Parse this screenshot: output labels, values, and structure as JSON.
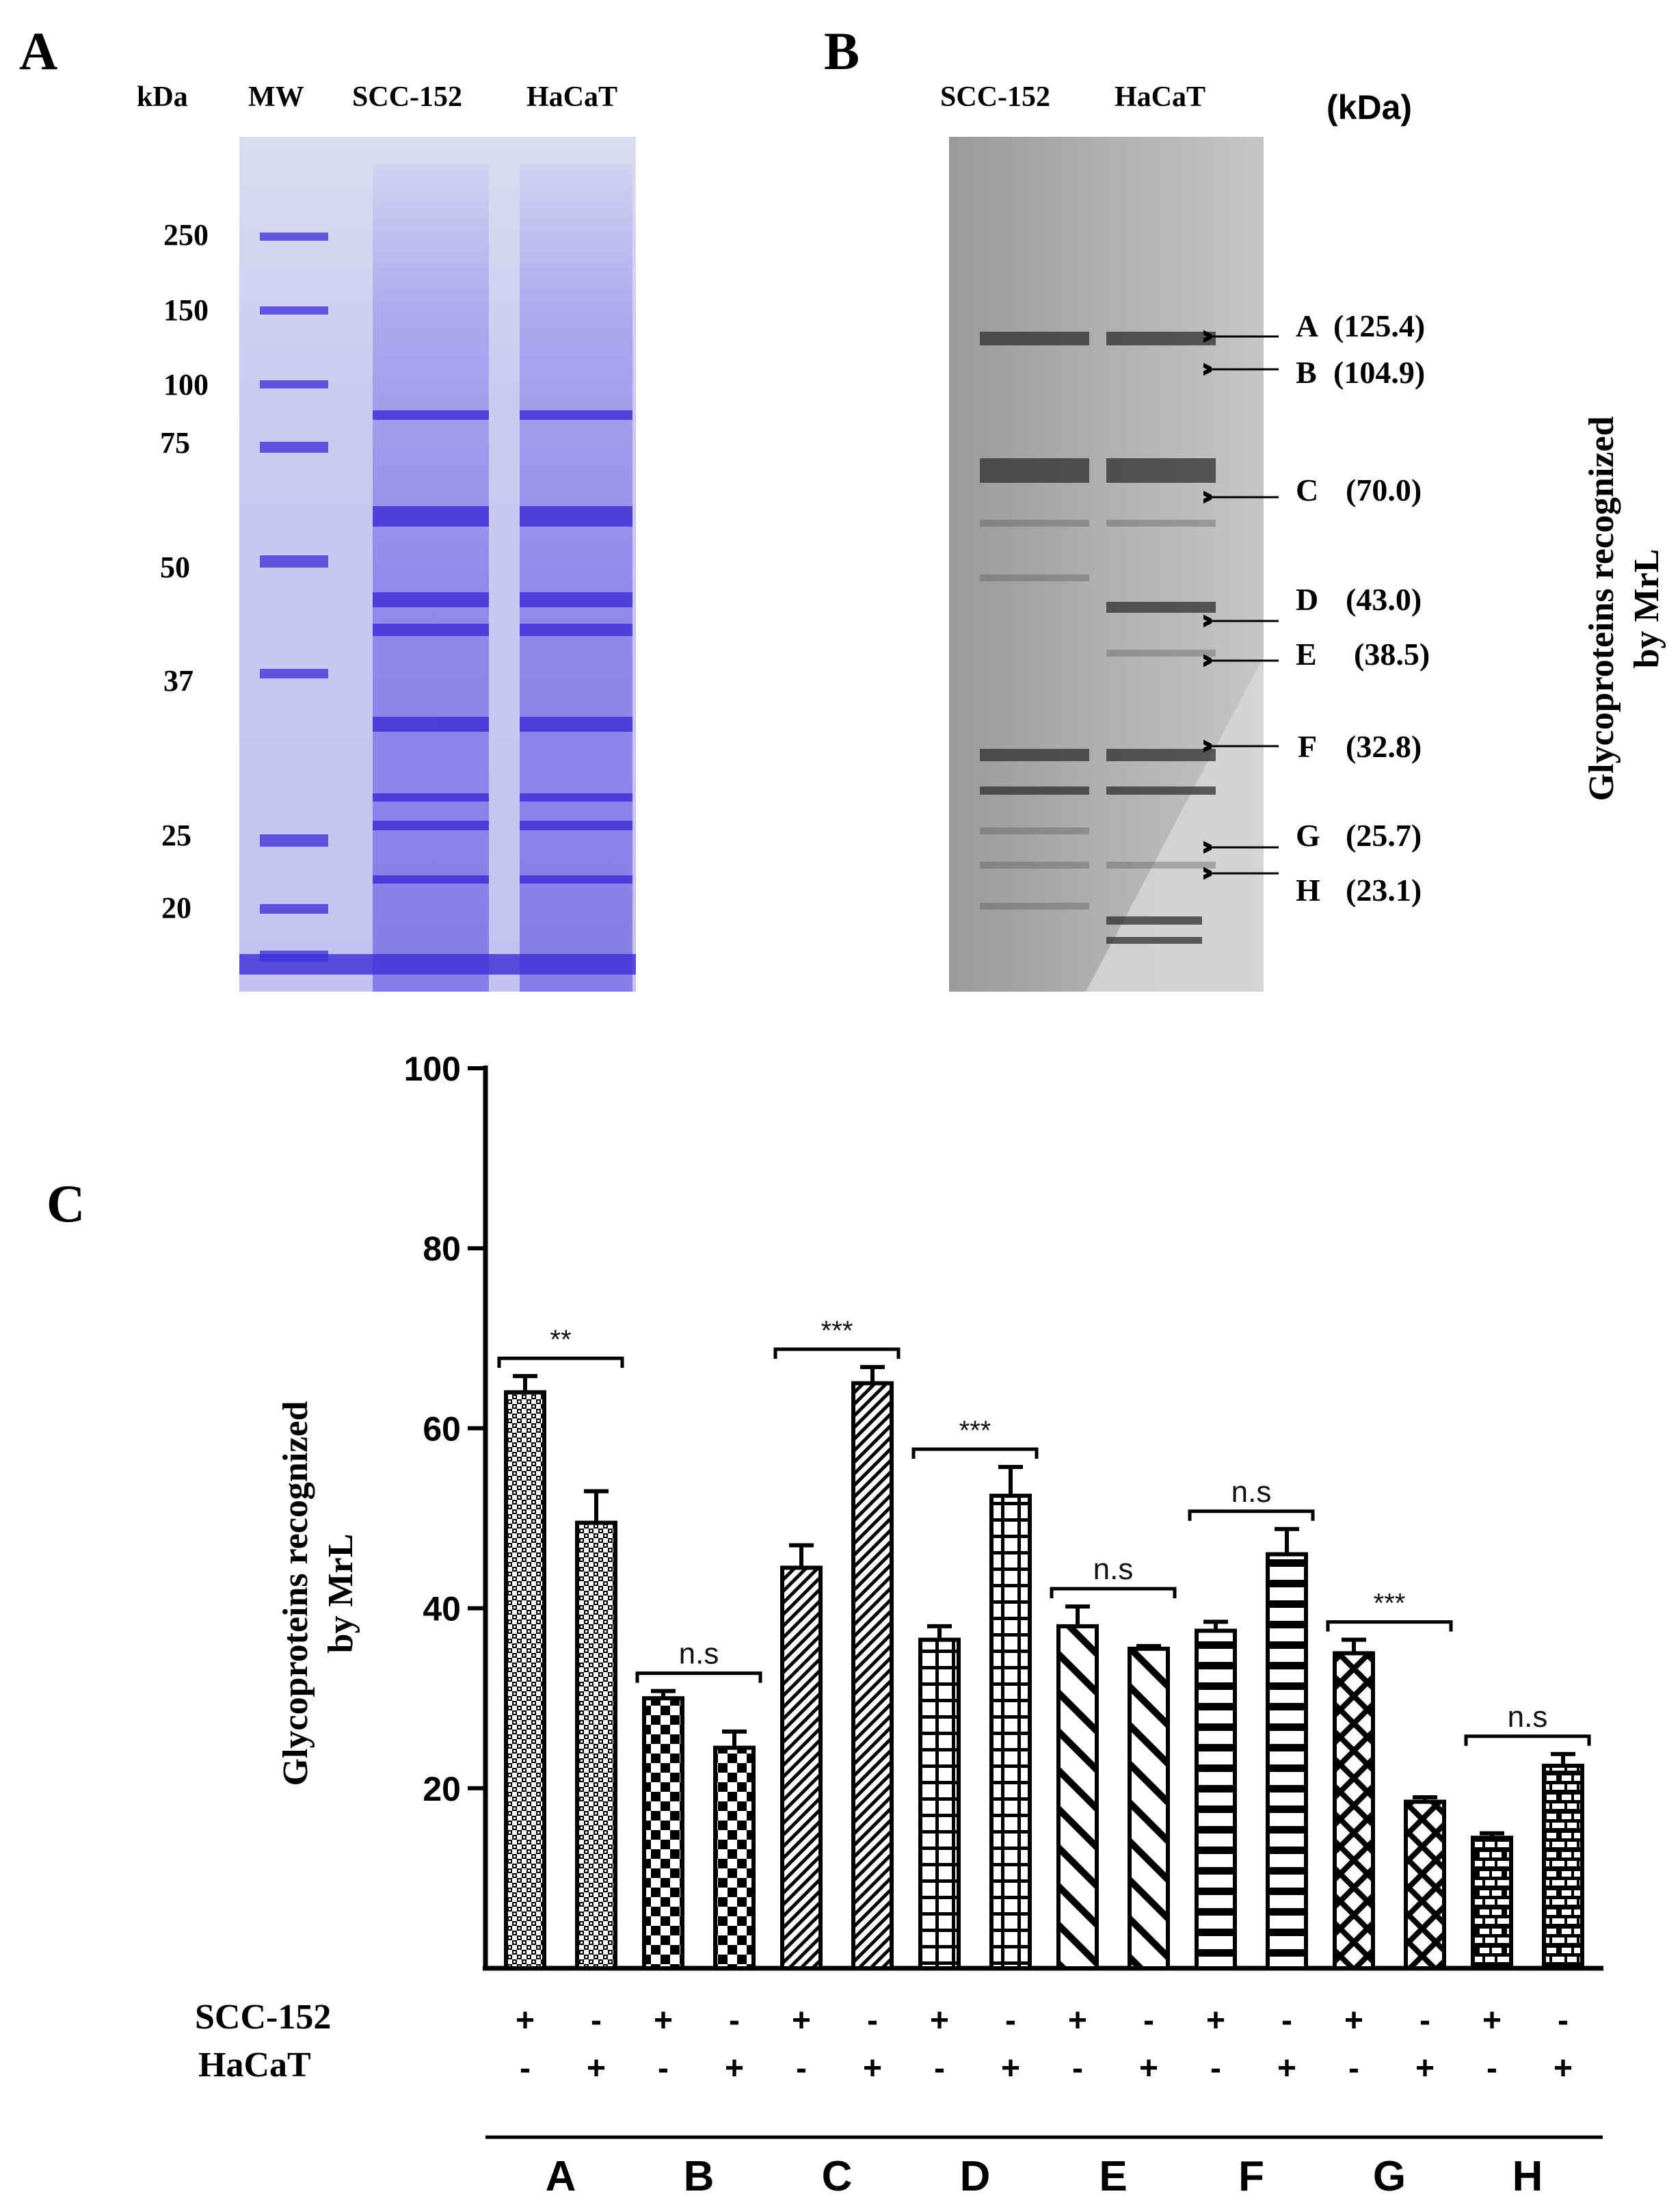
{
  "panel_a": {
    "letter": "A",
    "header": {
      "kda": "kDa",
      "mw": "MW",
      "lane1": "SCC-152",
      "lane2": "HaCaT"
    },
    "markers": [
      "250",
      "150",
      "100",
      "75",
      "50",
      "37",
      "25",
      "20"
    ]
  },
  "panel_b": {
    "letter": "B",
    "header": {
      "lane1": "SCC-152",
      "lane2": "HaCaT",
      "unit": "(kDa)"
    },
    "bands": [
      {
        "letter": "A",
        "kda": "(125.4)"
      },
      {
        "letter": "B",
        "kda": "(104.9)"
      },
      {
        "letter": "C",
        "kda": "(70.0)"
      },
      {
        "letter": "D",
        "kda": "(43.0)"
      },
      {
        "letter": "E",
        "kda": "(38.5)"
      },
      {
        "letter": "F",
        "kda": "(32.8)"
      },
      {
        "letter": "G",
        "kda": "(25.7)"
      },
      {
        "letter": "H",
        "kda": "(23.1)"
      }
    ],
    "side_title_line1": "Glycoproteins recognized",
    "side_title_line2": "by  MrL"
  },
  "panel_c": {
    "letter": "C",
    "ylabel_line1": "Glycoproteins recognized",
    "ylabel_line2": "by  MrL",
    "row_label_1": "SCC-152",
    "row_label_2": "HaCaT"
  },
  "chart_data": {
    "type": "bar",
    "ylim": [
      0,
      100
    ],
    "yticks": [
      "20",
      "40",
      "60",
      "80",
      "100"
    ],
    "categories": [
      "A",
      "B",
      "C",
      "D",
      "E",
      "F",
      "G",
      "H"
    ],
    "series": [
      {
        "name": "SCC-152",
        "values": [
          64,
          30,
          44.5,
          36.5,
          38,
          37.5,
          35,
          14.5
        ],
        "errors": [
          1.8,
          0.8,
          2.5,
          1.5,
          2.2,
          1.0,
          1.5,
          0.5
        ]
      },
      {
        "name": "HaCaT",
        "values": [
          49.5,
          24.5,
          65,
          52.5,
          35.5,
          46,
          18.5,
          22.5
        ],
        "errors": [
          3.5,
          1.8,
          1.8,
          3.2,
          0.3,
          2.8,
          0.5,
          1.3
        ]
      }
    ],
    "significance": [
      "**",
      "n.s",
      "***",
      "***",
      "n.s",
      "n.s",
      "***",
      "n.s"
    ],
    "scc152_signs": [
      "+",
      "-",
      "+",
      "-",
      "+",
      "-",
      "+",
      "-",
      "+",
      "-",
      "+",
      "-",
      "+",
      "-",
      "+",
      "-"
    ],
    "hacat_signs": [
      "-",
      "+",
      "-",
      "+",
      "-",
      "+",
      "-",
      "+",
      "-",
      "+",
      "-",
      "+",
      "-",
      "+",
      "-",
      "+"
    ],
    "colors": {
      "bar": "#000000",
      "background": "#ffffff"
    },
    "grid": false
  }
}
